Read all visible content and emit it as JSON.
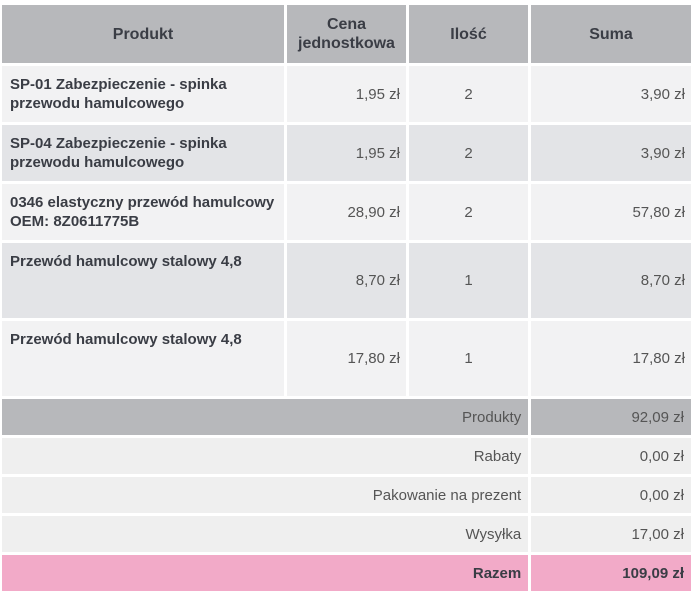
{
  "header": {
    "product": "Produkt",
    "unit_price": "Cena jednostkowa",
    "quantity": "Ilość",
    "sum": "Suma"
  },
  "products": [
    {
      "name": "SP-01 Zabezpieczenie - spinka przewodu hamulcowego",
      "unit_price": "1,95 zł",
      "qty": "2",
      "sum": "3,90 zł"
    },
    {
      "name": "SP-04 Zabezpieczenie - spinka przewodu hamulcowego",
      "unit_price": "1,95 zł",
      "qty": "2",
      "sum": "3,90 zł"
    },
    {
      "name": "0346 elastyczny przewód hamulcowy OEM: 8Z0611775B",
      "unit_price": "28,90 zł",
      "qty": "2",
      "sum": "57,80 zł"
    },
    {
      "name": "Przewód hamulcowy stalowy 4,8",
      "unit_price": "8,70 zł",
      "qty": "1",
      "sum": "8,70 zł"
    },
    {
      "name": "Przewód hamulcowy stalowy 4,8",
      "unit_price": "17,80 zł",
      "qty": "1",
      "sum": "17,80 zł"
    }
  ],
  "summary": {
    "products_label": "Produkty",
    "products_value": "92,09 zł",
    "discount_label": "Rabaty",
    "discount_value": "0,00 zł",
    "giftwrap_label": "Pakowanie na prezent",
    "giftwrap_value": "0,00 zł",
    "shipping_label": "Wysyłka",
    "shipping_value": "17,00 zł",
    "total_label": "Razem",
    "total_value": "109,09 zł"
  },
  "colors": {
    "header_bg": "#b7b8bb",
    "row_light": "#f2f2f3",
    "row_dark": "#e3e4e7",
    "total_bg": "#f2aac8"
  }
}
